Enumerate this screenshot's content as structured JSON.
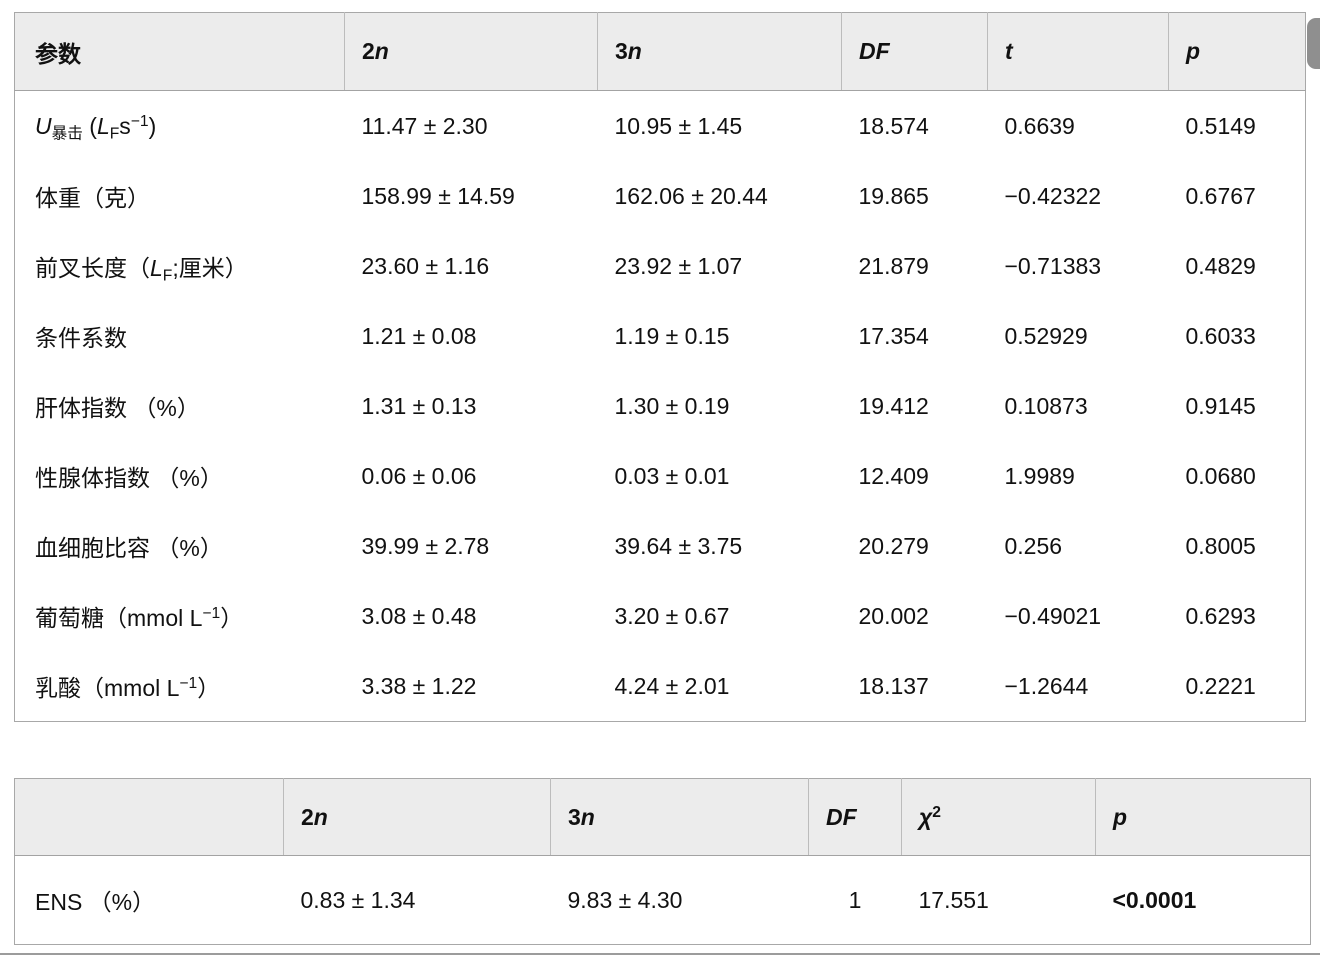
{
  "colors": {
    "header_bg": "#ececec",
    "table_border": "#a8a8a8",
    "scrollbar_thumb": "#8f8f8f",
    "text": "#111111"
  },
  "table1": {
    "headers": [
      {
        "html": "参数"
      },
      {
        "html": "2<i>n</i>"
      },
      {
        "html": "3<i>n</i>"
      },
      {
        "html": "<i>DF</i>"
      },
      {
        "html": "<i>t</i>"
      },
      {
        "html": "<i>p</i>"
      }
    ],
    "rows": [
      {
        "param": "<i>U</i><sub>暴击</sub> (<i>L</i><sub>F</sub>s<sup>−1</sup>)",
        "n2": "11.47 ± 2.30",
        "n3": "10.95 ± 1.45",
        "df": "18.574",
        "t": "0.6639",
        "p": "0.5149"
      },
      {
        "param": "体重（克）",
        "n2": "158.99 ± 14.59",
        "n3": "162.06 ± 20.44",
        "df": "19.865",
        "t": "−0.42322",
        "p": "0.6767"
      },
      {
        "param": "前叉长度（<i>L</i><sub>F</sub>;厘米）",
        "n2": "23.60 ± 1.16",
        "n3": "23.92 ± 1.07",
        "df": "21.879",
        "t": "−0.71383",
        "p": "0.4829"
      },
      {
        "param": "条件系数",
        "n2": "1.21 ± 0.08",
        "n3": "1.19 ± 0.15",
        "df": "17.354",
        "t": "0.52929",
        "p": "0.6033"
      },
      {
        "param": "肝体指数 （%）",
        "n2": "1.31 ± 0.13",
        "n3": "1.30 ± 0.19",
        "df": "19.412",
        "t": "0.10873",
        "p": "0.9145"
      },
      {
        "param": "性腺体指数 （%）",
        "n2": "0.06 ± 0.06",
        "n3": "0.03 ± 0.01",
        "df": "12.409",
        "t": "1.9989",
        "p": "0.0680"
      },
      {
        "param": "血细胞比容 （%）",
        "n2": "39.99 ± 2.78",
        "n3": "39.64 ± 3.75",
        "df": "20.279",
        "t": "0.256",
        "p": "0.8005"
      },
      {
        "param": "葡萄糖（mmol L<sup>−1</sup>）",
        "n2": "3.08 ± 0.48",
        "n3": "3.20 ± 0.67",
        "df": "20.002",
        "t": "−0.49021",
        "p": "0.6293"
      },
      {
        "param": "乳酸（mmol L<sup>−1</sup>）",
        "n2": "3.38 ± 1.22",
        "n3": "4.24 ± 2.01",
        "df": "18.137",
        "t": "−1.2644",
        "p": "0.2221"
      }
    ]
  },
  "table2": {
    "headers": [
      {
        "html": ""
      },
      {
        "html": "2<i>n</i>"
      },
      {
        "html": "3<i>n</i>"
      },
      {
        "html": "<i>DF</i>"
      },
      {
        "html": "<i>χ</i><sup>2</sup>"
      },
      {
        "html": "<i>p</i>"
      }
    ],
    "rows": [
      {
        "param": "ENS （%）",
        "n2": "0.83 ± 1.34",
        "n3": "9.83 ± 4.30",
        "df": "1",
        "chi2": "17.551",
        "p": "<0.0001"
      }
    ]
  }
}
